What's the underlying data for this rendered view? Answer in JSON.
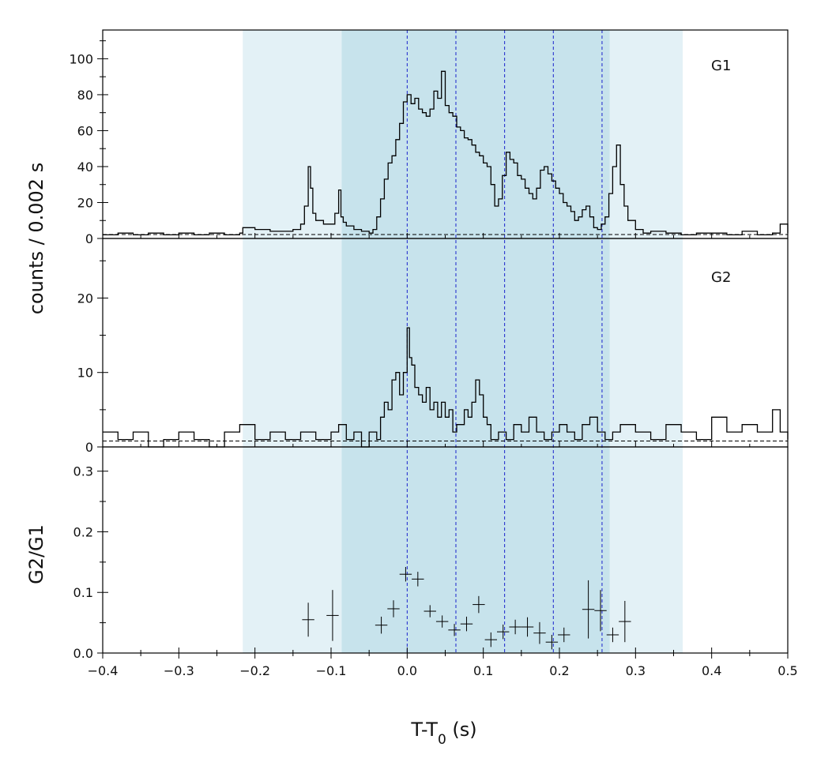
{
  "chart_data": [
    {
      "type": "line",
      "panel": "G1",
      "label": "G1",
      "ylabel": "counts /  0.002 s",
      "ylim": [
        0,
        116
      ],
      "yticks": [
        "0",
        "20",
        "40",
        "60",
        "80",
        "100"
      ],
      "ytick_values": [
        0,
        20,
        40,
        60,
        80,
        100
      ],
      "ytick_minor_step": 10,
      "xlim": [
        -0.4,
        0.5
      ],
      "background_level": 2.2,
      "light_region": [
        -0.216,
        0.362
      ],
      "dark_region": [
        -0.086,
        0.266
      ],
      "dashed_lines_x": [
        0.0,
        0.064,
        0.128,
        0.192,
        0.256
      ],
      "series": [
        {
          "x": [
            -0.4,
            -0.38,
            -0.36,
            -0.34,
            -0.32,
            -0.3,
            -0.28,
            -0.26,
            -0.24,
            -0.22,
            -0.216,
            -0.2,
            -0.18,
            -0.16,
            -0.15,
            -0.14,
            -0.135,
            -0.13,
            -0.127,
            -0.124,
            -0.12,
            -0.11,
            -0.1,
            -0.095,
            -0.09,
            -0.087,
            -0.084,
            -0.08,
            -0.07,
            -0.06,
            -0.05,
            -0.045,
            -0.04,
            -0.035,
            -0.03,
            -0.025,
            -0.02,
            -0.015,
            -0.01,
            -0.005,
            0.0,
            0.005,
            0.01,
            0.015,
            0.02,
            0.025,
            0.03,
            0.035,
            0.04,
            0.045,
            0.05,
            0.055,
            0.06,
            0.065,
            0.07,
            0.075,
            0.08,
            0.085,
            0.09,
            0.095,
            0.1,
            0.105,
            0.11,
            0.115,
            0.12,
            0.125,
            0.13,
            0.135,
            0.14,
            0.145,
            0.15,
            0.155,
            0.16,
            0.165,
            0.17,
            0.175,
            0.18,
            0.185,
            0.19,
            0.195,
            0.2,
            0.205,
            0.21,
            0.215,
            0.22,
            0.225,
            0.23,
            0.235,
            0.24,
            0.245,
            0.25,
            0.255,
            0.26,
            0.265,
            0.27,
            0.275,
            0.28,
            0.285,
            0.29,
            0.3,
            0.31,
            0.32,
            0.34,
            0.36,
            0.38,
            0.4,
            0.42,
            0.44,
            0.46,
            0.48,
            0.49,
            0.5
          ],
          "values": [
            2,
            3,
            2,
            3,
            2,
            3,
            2,
            3,
            2,
            3,
            6,
            5,
            4,
            4,
            5,
            8,
            18,
            40,
            28,
            14,
            10,
            8,
            8,
            14,
            27,
            12,
            9,
            7,
            5,
            4,
            3,
            5,
            12,
            22,
            33,
            42,
            46,
            55,
            64,
            76,
            80,
            75,
            78,
            72,
            70,
            68,
            72,
            82,
            78,
            93,
            74,
            70,
            68,
            62,
            60,
            56,
            55,
            52,
            48,
            46,
            42,
            40,
            30,
            18,
            22,
            35,
            48,
            44,
            42,
            35,
            33,
            28,
            25,
            22,
            28,
            38,
            40,
            36,
            32,
            28,
            25,
            20,
            18,
            15,
            10,
            12,
            16,
            18,
            12,
            6,
            5,
            8,
            12,
            25,
            40,
            52,
            30,
            18,
            10,
            5,
            3,
            4,
            3,
            2,
            3,
            3,
            2,
            4,
            2,
            3,
            8,
            3
          ]
        }
      ]
    },
    {
      "type": "line",
      "panel": "G2",
      "label": "G2",
      "ylim": [
        0,
        28
      ],
      "yticks": [
        "0",
        "10",
        "20"
      ],
      "ytick_values": [
        0,
        10,
        20
      ],
      "ytick_minor_step": 5,
      "xlim": [
        -0.4,
        0.5
      ],
      "background_level": 0.8,
      "series": [
        {
          "x": [
            -0.4,
            -0.38,
            -0.36,
            -0.34,
            -0.32,
            -0.3,
            -0.28,
            -0.26,
            -0.24,
            -0.22,
            -0.2,
            -0.18,
            -0.16,
            -0.14,
            -0.12,
            -0.1,
            -0.09,
            -0.08,
            -0.07,
            -0.06,
            -0.05,
            -0.04,
            -0.035,
            -0.03,
            -0.025,
            -0.02,
            -0.015,
            -0.01,
            -0.005,
            0.0,
            0.003,
            0.006,
            0.01,
            0.015,
            0.02,
            0.025,
            0.03,
            0.035,
            0.04,
            0.045,
            0.05,
            0.055,
            0.06,
            0.065,
            0.07,
            0.075,
            0.08,
            0.085,
            0.09,
            0.095,
            0.1,
            0.105,
            0.11,
            0.12,
            0.13,
            0.14,
            0.15,
            0.16,
            0.17,
            0.18,
            0.19,
            0.2,
            0.21,
            0.22,
            0.23,
            0.24,
            0.25,
            0.26,
            0.27,
            0.28,
            0.3,
            0.32,
            0.34,
            0.36,
            0.38,
            0.4,
            0.42,
            0.44,
            0.46,
            0.48,
            0.49,
            0.5
          ],
          "values": [
            2,
            1,
            2,
            0,
            1,
            2,
            1,
            0,
            2,
            3,
            1,
            2,
            1,
            2,
            1,
            2,
            3,
            1,
            2,
            0,
            2,
            1,
            4,
            6,
            5,
            9,
            10,
            7,
            10,
            16,
            12,
            11,
            8,
            7,
            6,
            8,
            5,
            6,
            4,
            6,
            4,
            5,
            2,
            3,
            3,
            5,
            4,
            6,
            9,
            7,
            4,
            3,
            1,
            2,
            1,
            3,
            2,
            4,
            2,
            1,
            2,
            3,
            2,
            1,
            3,
            4,
            2,
            1,
            2,
            3,
            2,
            1,
            3,
            2,
            1,
            4,
            2,
            3,
            2,
            5,
            2,
            1
          ]
        }
      ]
    },
    {
      "type": "scatter",
      "panel": "ratio",
      "ylabel": "G2/G1",
      "xlabel": "T-T₀ (s)",
      "ylim": [
        0,
        0.34
      ],
      "yticks": [
        "0.0",
        "0.1",
        "0.2",
        "0.3"
      ],
      "ytick_values": [
        0,
        0.1,
        0.2,
        0.3
      ],
      "ytick_minor_step": 0.05,
      "xlim": [
        -0.4,
        0.5
      ],
      "xticks": [
        "−0.4",
        "−0.3",
        "−0.2",
        "−0.1",
        "0.0",
        "0.1",
        "0.2",
        "0.3",
        "0.4",
        "0.5"
      ],
      "xtick_values": [
        -0.4,
        -0.3,
        -0.2,
        -0.1,
        0.0,
        0.1,
        0.2,
        0.3,
        0.4,
        0.5
      ],
      "xtick_minor_step": 0.05,
      "points": [
        {
          "x": -0.13,
          "y": 0.055,
          "xerr": 0.008,
          "yerr": 0.028
        },
        {
          "x": -0.098,
          "y": 0.062,
          "xerr": 0.008,
          "yerr": 0.042
        },
        {
          "x": -0.034,
          "y": 0.046,
          "xerr": 0.008,
          "yerr": 0.014
        },
        {
          "x": -0.018,
          "y": 0.073,
          "xerr": 0.008,
          "yerr": 0.014
        },
        {
          "x": -0.002,
          "y": 0.13,
          "xerr": 0.008,
          "yerr": 0.012
        },
        {
          "x": 0.014,
          "y": 0.122,
          "xerr": 0.008,
          "yerr": 0.012
        },
        {
          "x": 0.03,
          "y": 0.069,
          "xerr": 0.008,
          "yerr": 0.01
        },
        {
          "x": 0.046,
          "y": 0.052,
          "xerr": 0.008,
          "yerr": 0.01
        },
        {
          "x": 0.062,
          "y": 0.038,
          "xerr": 0.008,
          "yerr": 0.01
        },
        {
          "x": 0.078,
          "y": 0.048,
          "xerr": 0.008,
          "yerr": 0.012
        },
        {
          "x": 0.094,
          "y": 0.08,
          "xerr": 0.008,
          "yerr": 0.014
        },
        {
          "x": 0.11,
          "y": 0.022,
          "xerr": 0.008,
          "yerr": 0.012
        },
        {
          "x": 0.126,
          "y": 0.035,
          "xerr": 0.008,
          "yerr": 0.012
        },
        {
          "x": 0.142,
          "y": 0.043,
          "xerr": 0.008,
          "yerr": 0.012
        },
        {
          "x": 0.158,
          "y": 0.043,
          "xerr": 0.008,
          "yerr": 0.016
        },
        {
          "x": 0.174,
          "y": 0.033,
          "xerr": 0.008,
          "yerr": 0.018
        },
        {
          "x": 0.19,
          "y": 0.018,
          "xerr": 0.008,
          "yerr": 0.012
        },
        {
          "x": 0.206,
          "y": 0.03,
          "xerr": 0.008,
          "yerr": 0.012
        },
        {
          "x": 0.238,
          "y": 0.072,
          "xerr": 0.008,
          "yerr": 0.048
        },
        {
          "x": 0.254,
          "y": 0.07,
          "xerr": 0.008,
          "yerr": 0.034
        },
        {
          "x": 0.27,
          "y": 0.03,
          "xerr": 0.008,
          "yerr": 0.012
        },
        {
          "x": 0.286,
          "y": 0.052,
          "xerr": 0.008,
          "yerr": 0.034
        }
      ]
    }
  ],
  "colors": {
    "light_region": "#e3f1f6",
    "dark_region": "#c7e3ec",
    "dashed_lines": "#1a22cc",
    "axes": "#000000"
  }
}
